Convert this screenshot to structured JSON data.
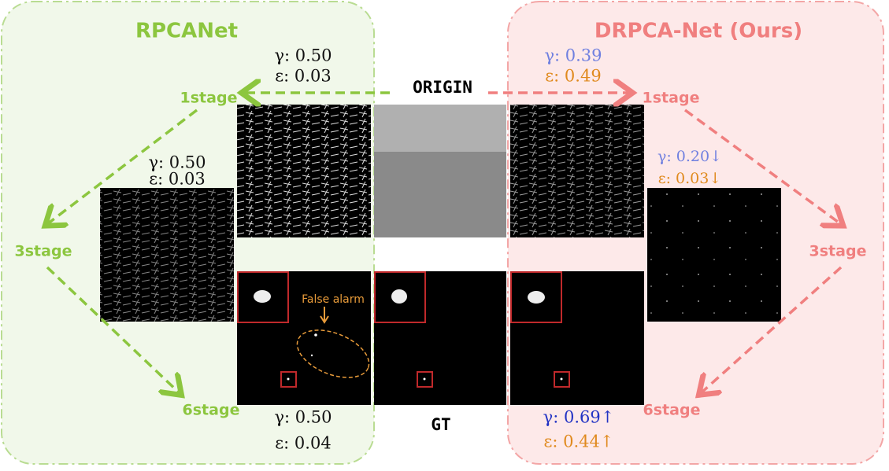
{
  "left": {
    "title": "RPCANet",
    "stages": [
      "1stage",
      "3stage",
      "6stage"
    ],
    "metrics": [
      {
        "gamma": "γ: 0.50",
        "epsilon": "ε: 0.03"
      },
      {
        "gamma": "γ: 0.50",
        "epsilon": "ε: 0.03"
      },
      {
        "gamma": "γ: 0.50",
        "epsilon": "ε: 0.04"
      }
    ],
    "annotation": "False alarm"
  },
  "center": {
    "top": "ORIGIN",
    "bottom": "GT"
  },
  "right": {
    "title": "DRPCA-Net (Ours)",
    "stages": [
      "1stage",
      "3stage",
      "6stage"
    ],
    "metrics": [
      {
        "gamma": "γ: 0.39",
        "epsilon": "ε: 0.49"
      },
      {
        "gamma": "γ: 0.20↓",
        "epsilon": "ε: 0.03↓"
      },
      {
        "gamma": "γ: 0.69↑",
        "epsilon": "ε: 0.44↑"
      }
    ]
  }
}
